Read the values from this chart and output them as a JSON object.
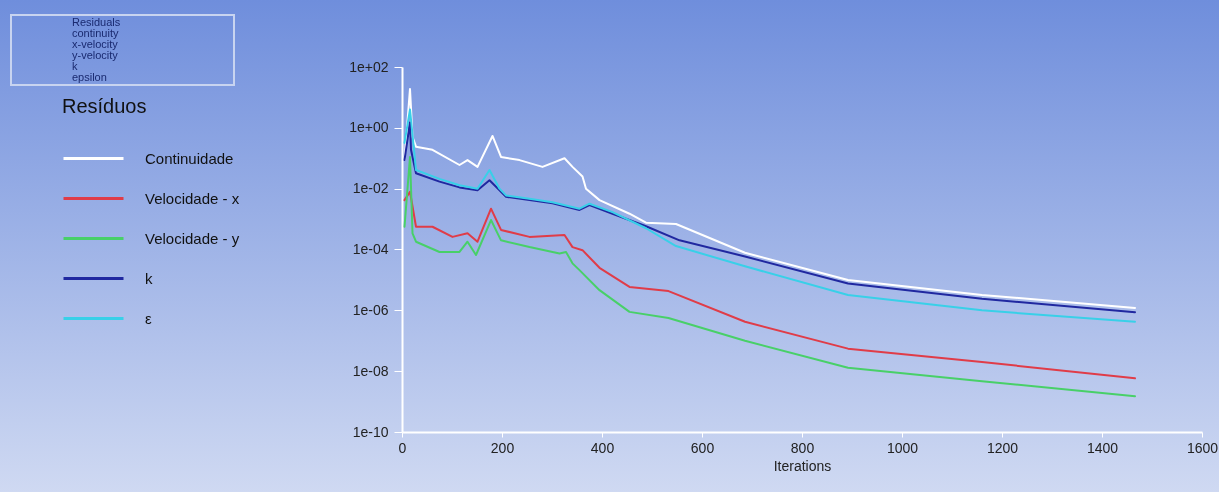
{
  "chart_data": {
    "type": "line",
    "xlabel": "Iterations",
    "legend_title": "Resíduos",
    "legend": "left",
    "line_style": "solid",
    "annotations": [
      "Residuals",
      "continuity",
      "x-velocity",
      "y-velocity",
      "k",
      "epsilon"
    ],
    "xlim": [
      0,
      1600
    ],
    "xticks": [
      0,
      200,
      400,
      600,
      800,
      1000,
      1200,
      1400,
      1600
    ],
    "log": "y",
    "ylim": [
      1e-10,
      100
    ],
    "yticks": [
      {
        "value": 1e-10,
        "label": "1e-10"
      },
      {
        "value": 1e-08,
        "label": "1e-08"
      },
      {
        "value": 1e-06,
        "label": "1e-06"
      },
      {
        "value": 0.0001,
        "label": "1e-04"
      },
      {
        "value": 0.01,
        "label": "1e-02"
      },
      {
        "value": 1,
        "label": "1e+00"
      },
      {
        "value": 100,
        "label": "1e+02"
      }
    ],
    "series": [
      {
        "name": "Continuidade",
        "color": "#ffffff",
        "x": [
          5,
          16,
          21,
          28,
          61,
          115,
          131,
          151,
          181,
          198,
          235,
          281,
          325,
          341,
          361,
          368,
          395,
          455,
          488,
          548,
          686,
          892,
          1160,
          1466
        ],
        "values": [
          0.087,
          19.0,
          0.51,
          0.24,
          0.19,
          0.06,
          0.087,
          0.052,
          0.54,
          0.11,
          0.087,
          0.052,
          0.1,
          0.052,
          0.025,
          0.01,
          0.0042,
          0.0015,
          0.00076,
          0.00069,
          7.8e-05,
          1e-05,
          3.2e-06,
          1.2e-06
        ]
      },
      {
        "name": "Velocidade - x",
        "color": "#e03c48",
        "x": [
          5,
          16,
          28,
          61,
          101,
          131,
          151,
          178,
          198,
          255,
          325,
          341,
          361,
          395,
          455,
          533,
          686,
          892,
          1160,
          1466
        ],
        "values": [
          0.0042,
          0.0079,
          0.00056,
          0.00056,
          0.00026,
          0.00034,
          0.00018,
          0.0022,
          0.00044,
          0.00026,
          0.0003,
          0.00012,
          9.5e-05,
          2.5e-05,
          5.9e-06,
          4.3e-06,
          4.2e-07,
          5.5e-08,
          2e-08,
          5.8e-09
        ]
      },
      {
        "name": "Velocidade - y",
        "color": "#48d068",
        "x": [
          5,
          16,
          21,
          28,
          75,
          115,
          131,
          148,
          178,
          198,
          255,
          315,
          328,
          341,
          355,
          395,
          455,
          533,
          686,
          892,
          1160,
          1466
        ],
        "values": [
          0.00056,
          0.11,
          0.00034,
          0.00018,
          8.3e-05,
          8.3e-05,
          0.00018,
          6.6e-05,
          0.00093,
          0.0002,
          0.00012,
          7.4e-05,
          8.3e-05,
          3.5e-05,
          2.1e-05,
          4.6e-06,
          8.9e-07,
          5.6e-07,
          1e-07,
          1.3e-08,
          4.7e-09,
          1.5e-09
        ]
      },
      {
        "name": "k",
        "color": "#2028a0",
        "x": [
          5,
          16,
          18,
          28,
          75,
          115,
          151,
          175,
          195,
          208,
          255,
          301,
          355,
          375,
          421,
          488,
          555,
          686,
          892,
          1160,
          1466
        ],
        "values": [
          0.087,
          1.5,
          0.19,
          0.032,
          0.017,
          0.011,
          0.0089,
          0.019,
          0.0089,
          0.0054,
          0.0042,
          0.0033,
          0.002,
          0.0029,
          0.0015,
          0.00058,
          0.0002,
          5.9e-05,
          7.6e-06,
          2.4e-06,
          8.7e-07
        ]
      },
      {
        "name": "ε",
        "color": "#38d0e8",
        "x": [
          5,
          16,
          28,
          75,
          115,
          151,
          175,
          195,
          208,
          255,
          301,
          355,
          375,
          421,
          488,
          548,
          686,
          892,
          1160,
          1466
        ],
        "values": [
          0.32,
          4.0,
          0.041,
          0.021,
          0.013,
          0.01,
          0.041,
          0.01,
          0.006,
          0.0047,
          0.0036,
          0.0022,
          0.0032,
          0.0017,
          0.0005,
          0.00013,
          2.8e-05,
          3.2e-06,
          1e-06,
          4.2e-07
        ]
      }
    ]
  }
}
